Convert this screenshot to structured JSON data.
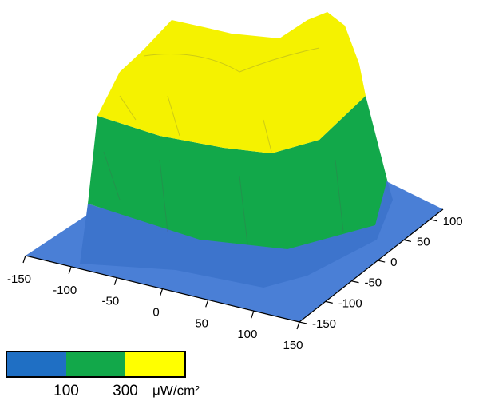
{
  "chart_data": {
    "type": "surface3d",
    "xlim": [
      -150,
      150
    ],
    "xticks": [
      -150,
      -100,
      -50,
      0,
      50,
      100,
      150
    ],
    "ylim": [
      -150,
      125
    ],
    "yticks": [
      -150,
      -100,
      -50,
      0,
      50,
      100
    ],
    "colorbar": {
      "levels": [
        100,
        300
      ],
      "colors": [
        "#1f6fc4",
        "#12a84a",
        "#ffff00"
      ],
      "unit": "μW/cm²"
    }
  }
}
